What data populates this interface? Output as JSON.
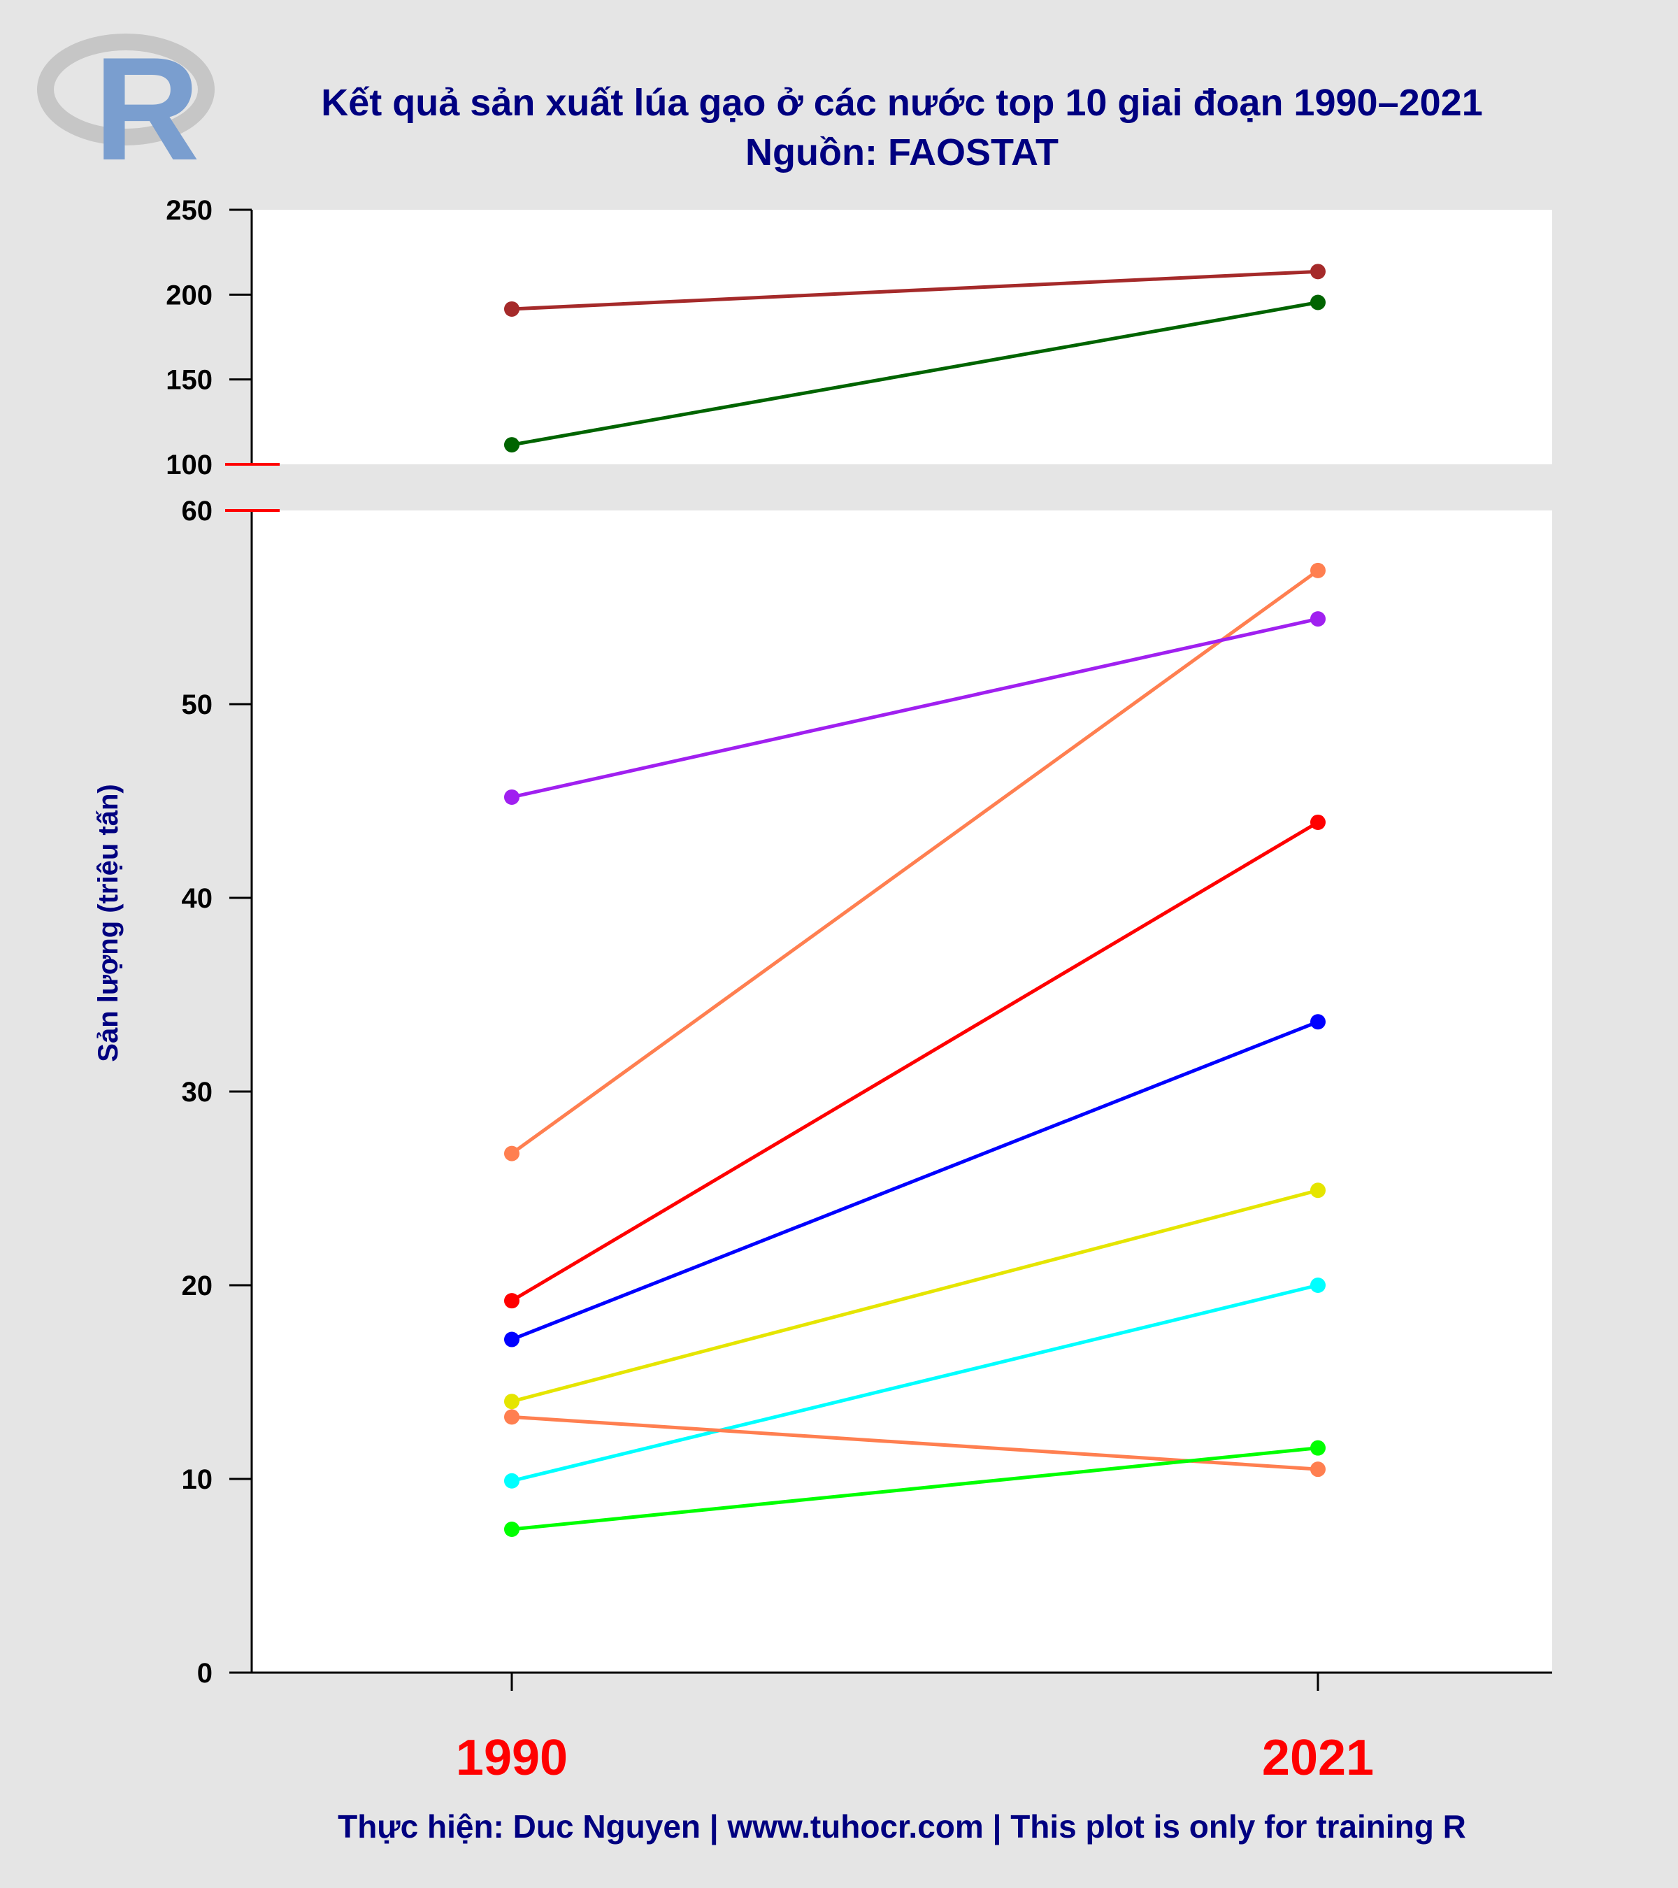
{
  "chart_data": {
    "type": "line",
    "title": "Kết quả sản xuất lúa gạo ở các nước top 10 giai đoạn 1990–2021",
    "subtitle": "Nguồn: FAOSTAT",
    "ylabel": "Sản lượng (triệu tấn)",
    "caption": "Thực hiện: Duc Nguyen | www.tuhocr.com | This plot is only for training R",
    "logo_text": "R",
    "categories": [
      "1990",
      "2021"
    ],
    "axis_break": true,
    "upper_ylim": [
      100,
      250
    ],
    "upper_ticks": [
      "100",
      "150",
      "200",
      "250"
    ],
    "lower_ylim": [
      0,
      60
    ],
    "lower_ticks": [
      "0",
      "10",
      "20",
      "30",
      "40",
      "50",
      "60"
    ],
    "grid": false,
    "series": [
      {
        "color": "#a52a2a",
        "panel": "upper",
        "values": [
          191.5,
          213.6
        ]
      },
      {
        "color": "#006400",
        "panel": "upper",
        "values": [
          111.5,
          195.4
        ]
      },
      {
        "color": "#ff7f50",
        "panel": "lower",
        "values": [
          26.8,
          56.9
        ]
      },
      {
        "color": "#a020f0",
        "panel": "lower",
        "values": [
          45.2,
          54.4
        ]
      },
      {
        "color": "#ff0000",
        "panel": "lower",
        "values": [
          19.2,
          43.9
        ]
      },
      {
        "color": "#0000ff",
        "panel": "lower",
        "values": [
          17.2,
          33.6
        ]
      },
      {
        "color": "#e5e500",
        "panel": "lower",
        "values": [
          14.0,
          24.9
        ]
      },
      {
        "color": "#00ffff",
        "panel": "lower",
        "values": [
          9.9,
          20.0
        ]
      },
      {
        "color": "#ff7f50",
        "panel": "lower",
        "values": [
          13.2,
          10.5
        ]
      },
      {
        "color": "#00ff00",
        "panel": "lower",
        "values": [
          7.4,
          11.6
        ]
      }
    ]
  }
}
